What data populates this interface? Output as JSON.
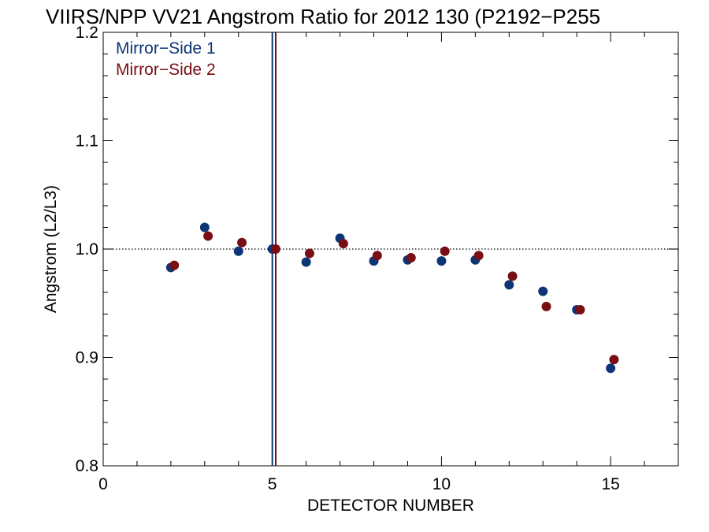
{
  "chart_data": {
    "type": "scatter",
    "title": "VIIRS/NPP VV21 Angstrom Ratio for 2012 130 (P2192−P255",
    "xlabel": "DETECTOR NUMBER",
    "ylabel": "Angstrom (L2/L3)",
    "xlim": [
      0,
      17
    ],
    "ylim": [
      0.8,
      1.2
    ],
    "x_ticks": [
      "0",
      "5",
      "10",
      "15"
    ],
    "y_ticks": [
      "0.8",
      "0.9",
      "1.0",
      "1.1",
      "1.2"
    ],
    "reference_line_y": 1.0,
    "reference_lines_x": [
      {
        "series": "Mirror−Side 1",
        "x": 5.0
      },
      {
        "series": "Mirror−Side 2",
        "x": 5.1
      }
    ],
    "legend_position": "top-left",
    "series": [
      {
        "name": "Mirror−Side 1",
        "color": "#0d3575",
        "x": [
          2,
          3,
          4,
          5,
          6,
          7,
          8,
          9,
          10,
          11,
          12,
          13,
          14,
          15
        ],
        "y": [
          0.983,
          1.02,
          0.998,
          1.0,
          0.988,
          1.01,
          0.989,
          0.99,
          0.989,
          0.99,
          0.967,
          0.961,
          0.944,
          0.89
        ]
      },
      {
        "name": "Mirror−Side 2",
        "color": "#780f14",
        "x": [
          2.1,
          3.1,
          4.1,
          5.1,
          6.1,
          7.1,
          8.1,
          9.1,
          10.1,
          11.1,
          12.1,
          13.1,
          14.1,
          15.1
        ],
        "y": [
          0.985,
          1.012,
          1.006,
          1.0,
          0.996,
          1.005,
          0.994,
          0.992,
          0.998,
          0.994,
          0.975,
          0.947,
          0.944,
          0.898
        ]
      }
    ]
  }
}
